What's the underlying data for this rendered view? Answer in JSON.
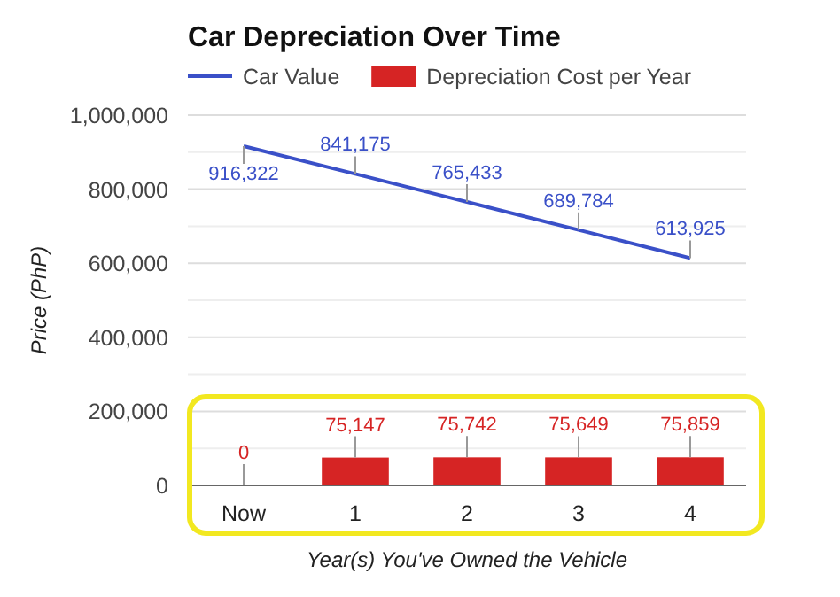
{
  "chart_data": {
    "type": "bar",
    "title": "Car Depreciation Over Time",
    "xlabel": "Year(s) You've Owned the Vehicle",
    "ylabel": "Price (PhP)",
    "categories": [
      "Now",
      "1",
      "2",
      "3",
      "4"
    ],
    "series": [
      {
        "name": "Car Value",
        "type": "line",
        "color": "#3a50c8",
        "values": [
          916322,
          841175,
          765433,
          689784,
          613925
        ],
        "value_labels": [
          "916,322",
          "841,175",
          "765,433",
          "689,784",
          "613,925"
        ]
      },
      {
        "name": "Depreciation Cost per Year",
        "color": "#d62424",
        "values": [
          0,
          75147,
          75742,
          75649,
          75859
        ],
        "value_labels": [
          "0",
          "75,147",
          "75,742",
          "75,649",
          "75,859"
        ]
      }
    ],
    "ylim": [
      0,
      1000000
    ],
    "yticks": [
      0,
      {
        "value": 100000,
        "label": null
      },
      {
        "value": 200000,
        "label": "200,000"
      },
      {
        "value": 300000,
        "label": null
      },
      {
        "value": 400000,
        "label": "400,000"
      },
      {
        "value": 500000,
        "label": null
      },
      {
        "value": 600000,
        "label": "600,000"
      },
      {
        "value": 700000,
        "label": null
      },
      {
        "value": 800000,
        "label": "800,000"
      },
      {
        "value": 900000,
        "label": null
      },
      {
        "value": 1000000,
        "label": "1,000,000"
      }
    ],
    "grid": true,
    "legend": "top",
    "marker": "none"
  }
}
